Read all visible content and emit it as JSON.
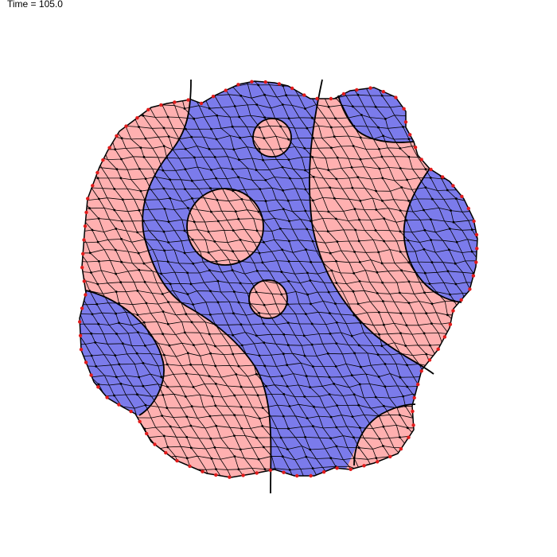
{
  "header": {
    "time_label": "Time = 105.0"
  },
  "colors": {
    "pink_cell": "#ffb0b0",
    "blue_cell": "#7b7beb",
    "cell_edge": "#000000",
    "vertex": "#000000",
    "boundary_vertex": "#e21b1b"
  }
}
